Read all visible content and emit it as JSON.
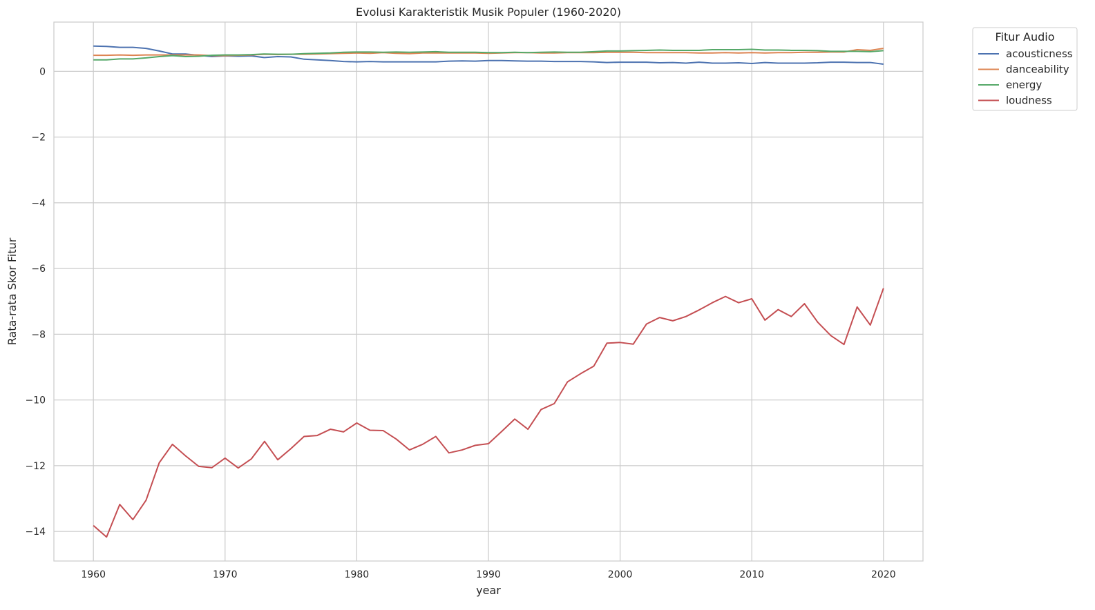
{
  "chart_data": {
    "type": "line",
    "title": "Evolusi Karakteristik Musik Populer (1960-2020)",
    "xlabel": "year",
    "ylabel": "Rata-rata Skor Fitur",
    "xlim": [
      1957,
      2023
    ],
    "ylim": [
      -14.9,
      1.5
    ],
    "xticks": [
      1960,
      1970,
      1980,
      1990,
      2000,
      2010,
      2020
    ],
    "yticks": [
      0,
      -2,
      -4,
      -6,
      -8,
      -10,
      -12,
      -14
    ],
    "ytick_labels": [
      "0",
      "−2",
      "−4",
      "−6",
      "−8",
      "−10",
      "−12",
      "−14"
    ],
    "grid": true,
    "legend": {
      "title": "Fitur Audio",
      "placement": "outside-top-right"
    },
    "x": [
      1960,
      1961,
      1962,
      1963,
      1964,
      1965,
      1966,
      1967,
      1968,
      1969,
      1970,
      1971,
      1972,
      1973,
      1974,
      1975,
      1976,
      1977,
      1978,
      1979,
      1980,
      1981,
      1982,
      1983,
      1984,
      1985,
      1986,
      1987,
      1988,
      1989,
      1990,
      1991,
      1992,
      1993,
      1994,
      1995,
      1996,
      1997,
      1998,
      1999,
      2000,
      2001,
      2002,
      2003,
      2004,
      2005,
      2006,
      2007,
      2008,
      2009,
      2010,
      2011,
      2012,
      2013,
      2014,
      2015,
      2016,
      2017,
      2018,
      2019,
      2020
    ],
    "series": [
      {
        "name": "acousticness",
        "color": "#4c72b0",
        "values": [
          0.77,
          0.76,
          0.73,
          0.73,
          0.7,
          0.62,
          0.53,
          0.53,
          0.49,
          0.45,
          0.47,
          0.46,
          0.47,
          0.42,
          0.45,
          0.44,
          0.37,
          0.35,
          0.33,
          0.3,
          0.29,
          0.3,
          0.29,
          0.29,
          0.29,
          0.29,
          0.29,
          0.31,
          0.32,
          0.31,
          0.33,
          0.33,
          0.32,
          0.31,
          0.31,
          0.3,
          0.3,
          0.3,
          0.29,
          0.27,
          0.28,
          0.28,
          0.28,
          0.26,
          0.27,
          0.25,
          0.28,
          0.25,
          0.25,
          0.26,
          0.24,
          0.27,
          0.25,
          0.25,
          0.25,
          0.26,
          0.28,
          0.28,
          0.27,
          0.27,
          0.22
        ]
      },
      {
        "name": "danceability",
        "color": "#dd8452",
        "values": [
          0.49,
          0.49,
          0.5,
          0.49,
          0.5,
          0.5,
          0.5,
          0.5,
          0.5,
          0.48,
          0.48,
          0.49,
          0.5,
          0.52,
          0.51,
          0.52,
          0.52,
          0.53,
          0.54,
          0.55,
          0.56,
          0.55,
          0.57,
          0.55,
          0.54,
          0.56,
          0.56,
          0.56,
          0.56,
          0.56,
          0.55,
          0.56,
          0.57,
          0.57,
          0.56,
          0.56,
          0.57,
          0.57,
          0.57,
          0.58,
          0.58,
          0.58,
          0.57,
          0.57,
          0.57,
          0.57,
          0.56,
          0.56,
          0.57,
          0.56,
          0.57,
          0.56,
          0.57,
          0.57,
          0.58,
          0.58,
          0.59,
          0.59,
          0.66,
          0.64,
          0.7
        ]
      },
      {
        "name": "energy",
        "color": "#55a868",
        "values": [
          0.35,
          0.35,
          0.38,
          0.38,
          0.41,
          0.45,
          0.48,
          0.45,
          0.46,
          0.49,
          0.5,
          0.5,
          0.51,
          0.53,
          0.52,
          0.52,
          0.54,
          0.55,
          0.56,
          0.58,
          0.59,
          0.59,
          0.58,
          0.59,
          0.58,
          0.59,
          0.6,
          0.58,
          0.58,
          0.58,
          0.57,
          0.57,
          0.58,
          0.57,
          0.58,
          0.59,
          0.58,
          0.58,
          0.6,
          0.62,
          0.62,
          0.63,
          0.64,
          0.65,
          0.64,
          0.64,
          0.64,
          0.66,
          0.66,
          0.66,
          0.67,
          0.65,
          0.65,
          0.64,
          0.64,
          0.63,
          0.61,
          0.61,
          0.61,
          0.6,
          0.63
        ]
      },
      {
        "name": "loudness",
        "color": "#c44e52",
        "values": [
          -13.82,
          -14.17,
          -13.18,
          -13.64,
          -13.05,
          -11.91,
          -11.35,
          -11.7,
          -12.02,
          -12.06,
          -11.77,
          -12.07,
          -11.79,
          -11.26,
          -11.82,
          -11.48,
          -11.11,
          -11.08,
          -10.89,
          -10.97,
          -10.7,
          -10.92,
          -10.93,
          -11.19,
          -11.52,
          -11.35,
          -11.11,
          -11.61,
          -11.52,
          -11.38,
          -11.33,
          -10.96,
          -10.58,
          -10.89,
          -10.29,
          -10.11,
          -9.45,
          -9.2,
          -8.97,
          -8.27,
          -8.25,
          -8.3,
          -7.69,
          -7.49,
          -7.59,
          -7.46,
          -7.26,
          -7.04,
          -6.85,
          -7.04,
          -6.92,
          -7.57,
          -7.25,
          -7.46,
          -7.07,
          -7.63,
          -8.04,
          -8.31,
          -7.17,
          -7.72,
          -6.6
        ]
      }
    ]
  }
}
